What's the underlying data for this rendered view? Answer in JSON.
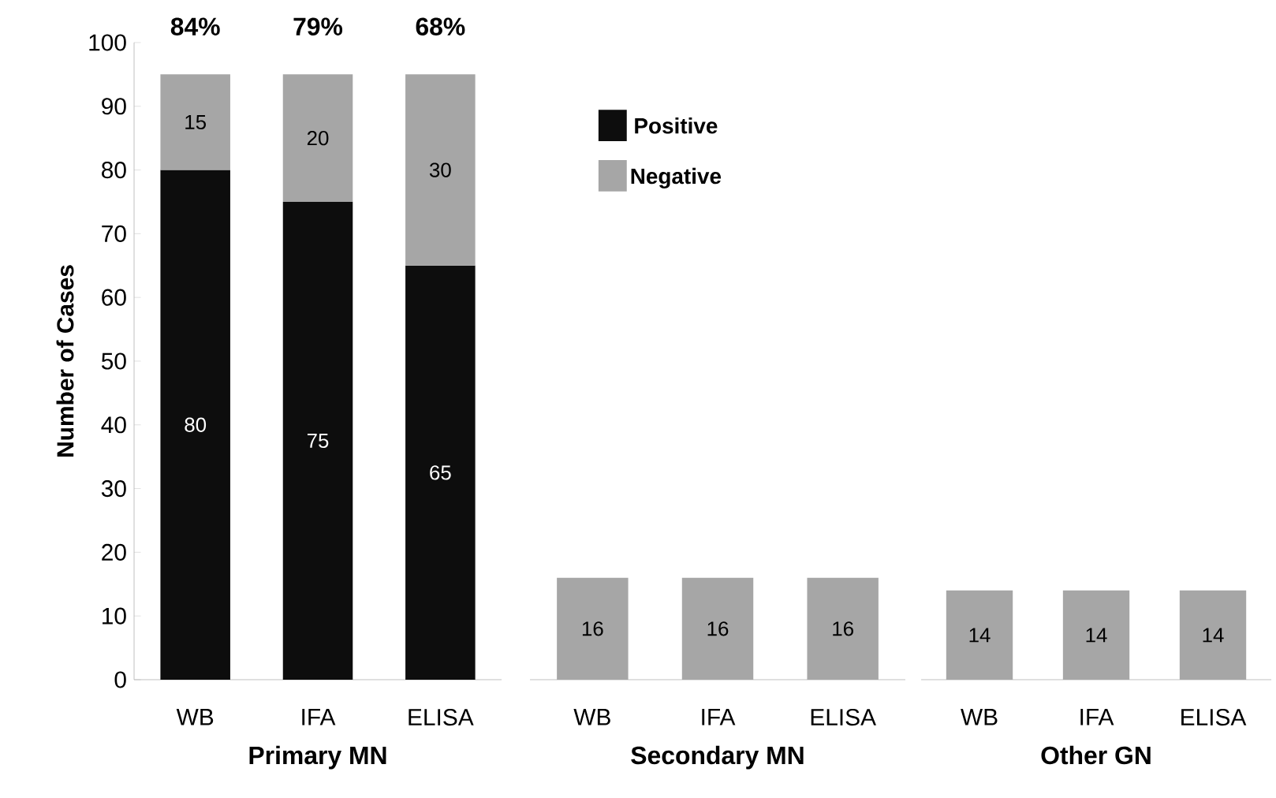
{
  "chart_data": [
    {
      "type": "bar",
      "stacked": true,
      "categories": [
        "WB",
        "IFA",
        "ELISA"
      ],
      "xlabel": "Primary MN",
      "ylabel": "Number of Cases",
      "ylim": [
        0,
        100
      ],
      "yticks": [
        0,
        10,
        20,
        30,
        40,
        50,
        60,
        70,
        80,
        90,
        100
      ],
      "legend": "right",
      "data_labels": true,
      "series": [
        {
          "name": "Positive",
          "color": "#0d0d0d",
          "values": [
            80,
            75,
            65
          ]
        },
        {
          "name": "Negative",
          "color": "#a6a6a6",
          "values": [
            15,
            20,
            30
          ]
        }
      ],
      "annotations": [
        "84%",
        "79%",
        "68%"
      ]
    },
    {
      "type": "bar",
      "categories": [
        "WB",
        "IFA",
        "ELISA"
      ],
      "xlabel": "Secondary MN",
      "ylim": [
        0,
        100
      ],
      "tick_labels": "x",
      "data_labels": true,
      "series": [
        {
          "color": "#a6a6a6",
          "values": [
            16,
            16,
            16
          ]
        }
      ]
    },
    {
      "type": "bar",
      "categories": [
        "WB",
        "IFA",
        "ELISA"
      ],
      "xlabel": "Other GN",
      "ylim": [
        0,
        100
      ],
      "tick_labels": "x",
      "data_labels": true,
      "series": [
        {
          "color": "#a6a6a6",
          "values": [
            14,
            14,
            14
          ]
        }
      ]
    }
  ]
}
